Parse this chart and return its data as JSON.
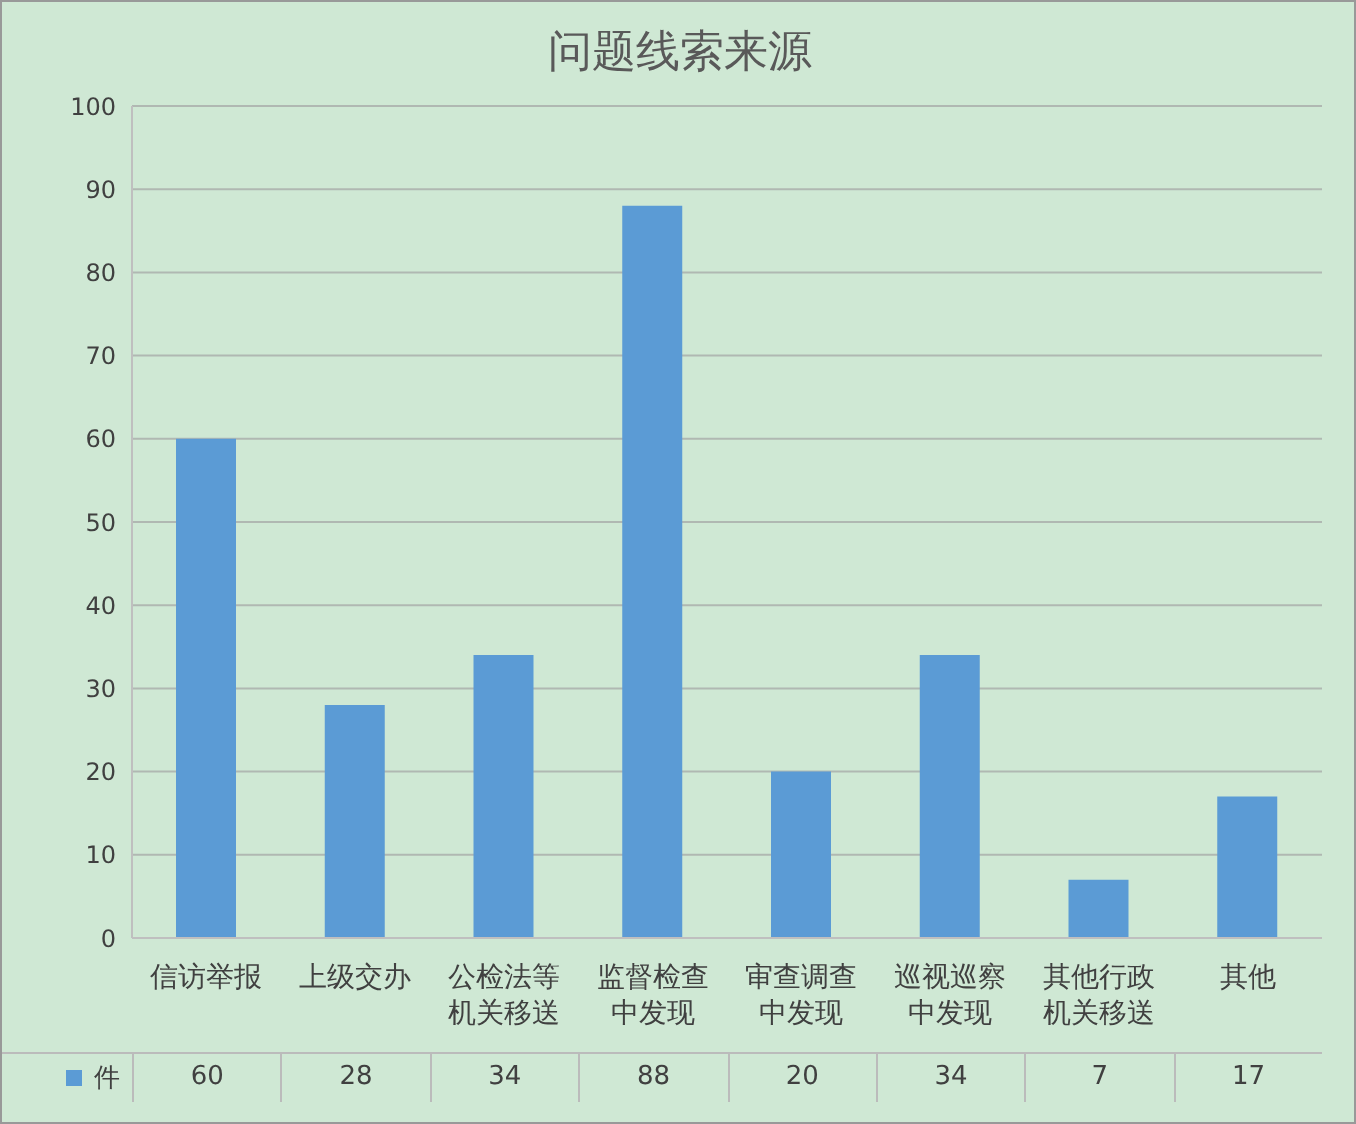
{
  "chart_data": {
    "type": "bar",
    "title": "问题线索来源",
    "categories": [
      "信访举报",
      "上级交办",
      "公检法等机关移送",
      "监督检查中发现",
      "审查调查中发现",
      "巡视巡察中发现",
      "其他行政机关移送",
      "其他"
    ],
    "series": [
      {
        "name": "件",
        "color": "#5b9bd5",
        "values": [
          60,
          28,
          34,
          88,
          20,
          34,
          7,
          17
        ]
      }
    ],
    "ylim": [
      0,
      100
    ],
    "yticks": [
      0,
      10,
      20,
      30,
      40,
      50,
      60,
      70,
      80,
      90,
      100
    ],
    "grid": "y",
    "legend": "bottom",
    "data_labels": true
  }
}
